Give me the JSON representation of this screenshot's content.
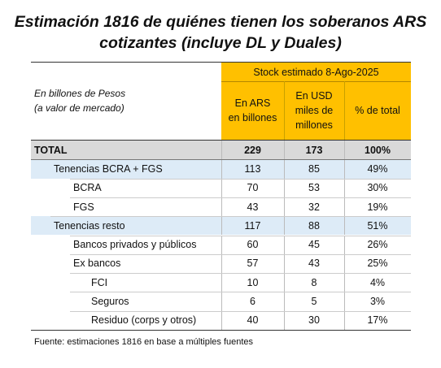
{
  "title": [
    "Estimación 1816 de quiénes tienen los soberanos ARS",
    "cotizantes (incluye DL y Duales)"
  ],
  "unit_note": [
    "En billones de Pesos",
    "(a valor de mercado)"
  ],
  "header": {
    "group": "Stock estimado 8-Ago-2025",
    "columns": [
      [
        "En ARS",
        "en billones"
      ],
      [
        "En USD",
        "miles de",
        "millones"
      ],
      [
        "% de total"
      ]
    ]
  },
  "table": {
    "rows": [
      {
        "label": "TOTAL",
        "cells": [
          229,
          173,
          "100%"
        ]
      },
      {
        "label": "Tenencias BCRA + FGS",
        "cells": [
          113,
          85,
          "49%"
        ]
      },
      {
        "label": "BCRA",
        "cells": [
          70,
          53,
          "30%"
        ]
      },
      {
        "label": "FGS",
        "cells": [
          43,
          32,
          "19%"
        ]
      },
      {
        "label": "Tenencias resto",
        "cells": [
          117,
          88,
          "51%"
        ]
      },
      {
        "label": "Bancos privados y públicos",
        "cells": [
          60,
          45,
          "26%"
        ]
      },
      {
        "label": "Ex bancos",
        "cells": [
          57,
          43,
          "25%"
        ]
      },
      {
        "label": "FCI",
        "cells": [
          10,
          8,
          "4%"
        ]
      },
      {
        "label": "Seguros",
        "cells": [
          6,
          5,
          "3%"
        ]
      },
      {
        "label": "Residuo (corps y otros)",
        "cells": [
          40,
          30,
          "17%"
        ]
      }
    ]
  },
  "footnote": "Fuente: estimaciones 1816 en base a múltiples fuentes"
}
